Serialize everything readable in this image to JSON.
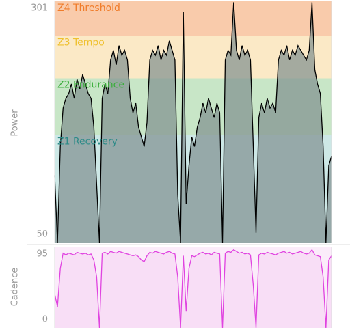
{
  "chart_data": [
    {
      "type": "area",
      "y_label": "Power",
      "ylim": [
        50,
        301
      ],
      "yticks": [
        50,
        301
      ],
      "color": "#000000",
      "fill": "#7f8f8f",
      "zones": [
        {
          "name": "Z4 Threshold",
          "from": 265,
          "to": 301,
          "color": "#f9cbab",
          "text_color": "#f07c2a"
        },
        {
          "name": "Z3 Tempo",
          "from": 221,
          "to": 265,
          "color": "#fbe9c6",
          "text_color": "#efc12f"
        },
        {
          "name": "Z2 Endurance",
          "from": 162,
          "to": 221,
          "color": "#c8e6c7",
          "text_color": "#3cae3c"
        },
        {
          "name": "Z1 Recovery",
          "from": 50,
          "to": 162,
          "color": "#cde8e6",
          "text_color": "#2d8b88"
        }
      ],
      "values": [
        120,
        50,
        150,
        190,
        200,
        205,
        215,
        200,
        220,
        210,
        225,
        215,
        205,
        200,
        170,
        110,
        50,
        200,
        215,
        205,
        240,
        250,
        235,
        255,
        245,
        250,
        240,
        200,
        185,
        195,
        170,
        160,
        150,
        175,
        240,
        250,
        245,
        255,
        240,
        250,
        245,
        260,
        250,
        240,
        100,
        50,
        290,
        90,
        130,
        160,
        150,
        170,
        180,
        195,
        185,
        200,
        190,
        180,
        195,
        185,
        50,
        240,
        250,
        245,
        300,
        250,
        240,
        255,
        245,
        250,
        240,
        150,
        60,
        180,
        195,
        185,
        200,
        190,
        195,
        185,
        240,
        250,
        245,
        255,
        240,
        250,
        245,
        255,
        250,
        245,
        240,
        250,
        300,
        230,
        215,
        205,
        150,
        50,
        130,
        140
      ]
    },
    {
      "type": "area",
      "y_label": "Cadence",
      "ylim": [
        0,
        95
      ],
      "yticks": [
        0,
        95
      ],
      "color": "#e043e0",
      "fill": "#f8def6",
      "background": "#fbecfa",
      "values": [
        40,
        25,
        70,
        88,
        86,
        88,
        87,
        86,
        89,
        88,
        87,
        88,
        86,
        87,
        80,
        60,
        0,
        88,
        89,
        87,
        90,
        89,
        88,
        90,
        89,
        88,
        87,
        86,
        85,
        86,
        84,
        80,
        78,
        85,
        89,
        88,
        90,
        89,
        88,
        87,
        89,
        90,
        88,
        87,
        60,
        0,
        85,
        20,
        70,
        85,
        84,
        86,
        88,
        89,
        87,
        88,
        86,
        89,
        88,
        87,
        0,
        88,
        90,
        89,
        92,
        90,
        88,
        89,
        87,
        88,
        86,
        50,
        0,
        86,
        88,
        87,
        89,
        88,
        87,
        86,
        88,
        89,
        90,
        88,
        89,
        87,
        88,
        89,
        90,
        88,
        87,
        88,
        92,
        86,
        85,
        84,
        60,
        0,
        80,
        85
      ]
    }
  ]
}
